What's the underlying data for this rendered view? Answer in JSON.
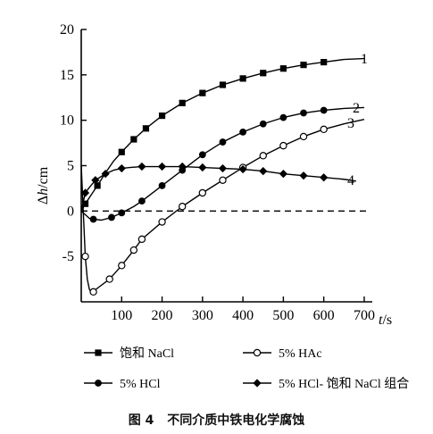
{
  "chart_data": {
    "type": "line",
    "title": "",
    "xlabel_var": "t",
    "xlabel_unit": "s",
    "ylabel_delta": "Δ",
    "ylabel_var": "h",
    "ylabel_unit": "cm",
    "xlim": [
      0,
      720
    ],
    "ylim": [
      -10,
      20
    ],
    "x_ticks": [
      100,
      200,
      300,
      400,
      500,
      600,
      700
    ],
    "y_ticks": [
      -5,
      0,
      5,
      10,
      15,
      20
    ],
    "grid": false,
    "zero_line": "dashed",
    "series": [
      {
        "name": "饱和 NaCl",
        "curve_label": "1",
        "marker": "square-filled",
        "x": [
          0,
          10,
          25,
          40,
          60,
          80,
          100,
          130,
          160,
          200,
          250,
          300,
          350,
          400,
          450,
          500,
          550,
          600,
          650,
          700
        ],
        "y": [
          0,
          0.8,
          1.8,
          2.8,
          4.2,
          5.5,
          6.5,
          7.9,
          9.1,
          10.5,
          11.9,
          13.0,
          13.9,
          14.6,
          15.2,
          15.7,
          16.1,
          16.4,
          16.7,
          16.8
        ],
        "marker_x": [
          10,
          40,
          100,
          130,
          160,
          200,
          250,
          300,
          350,
          400,
          450,
          500,
          550,
          600
        ]
      },
      {
        "name": "5% HCl",
        "curve_label": "2",
        "marker": "circle-filled",
        "x": [
          0,
          10,
          20,
          30,
          50,
          75,
          100,
          130,
          150,
          200,
          250,
          300,
          350,
          400,
          450,
          500,
          550,
          600,
          650,
          700
        ],
        "y": [
          0,
          -0.4,
          -0.8,
          -0.9,
          -1.0,
          -0.7,
          -0.2,
          0.5,
          1.1,
          2.8,
          4.5,
          6.2,
          7.6,
          8.7,
          9.6,
          10.3,
          10.8,
          11.1,
          11.3,
          11.4
        ],
        "marker_x": [
          30,
          75,
          100,
          150,
          200,
          250,
          300,
          350,
          400,
          450,
          500,
          550,
          600
        ]
      },
      {
        "name": "5% HAc",
        "curve_label": "3",
        "marker": "circle-open",
        "x": [
          0,
          5,
          10,
          15,
          20,
          25,
          30,
          40,
          70,
          100,
          130,
          150,
          200,
          250,
          300,
          350,
          400,
          450,
          500,
          550,
          600,
          650,
          700
        ],
        "y": [
          5,
          0,
          -5,
          -7.5,
          -8.6,
          -9.0,
          -8.9,
          -8.5,
          -7.5,
          -6.0,
          -4.3,
          -3.1,
          -1.2,
          0.5,
          2.0,
          3.4,
          4.8,
          6.1,
          7.2,
          8.2,
          9.0,
          9.6,
          10.1
        ],
        "marker_x": [
          10,
          30,
          70,
          100,
          130,
          150,
          200,
          250,
          300,
          350,
          400,
          450,
          500,
          550,
          600
        ]
      },
      {
        "name": "5% HCl- 饱和 NaCl 组合",
        "curve_label": "4",
        "marker": "diamond-filled",
        "x": [
          0,
          5,
          10,
          20,
          35,
          60,
          80,
          100,
          120,
          150,
          200,
          250,
          300,
          350,
          400,
          450,
          500,
          550,
          600,
          650,
          680
        ],
        "y": [
          0,
          1.0,
          2.0,
          2.6,
          3.4,
          4.1,
          4.5,
          4.7,
          4.8,
          4.9,
          4.9,
          4.9,
          4.8,
          4.7,
          4.6,
          4.4,
          4.1,
          3.9,
          3.7,
          3.5,
          3.3
        ],
        "marker_x": [
          10,
          35,
          60,
          100,
          150,
          200,
          250,
          300,
          350,
          400,
          450,
          500,
          550,
          600
        ]
      }
    ]
  },
  "caption": {
    "figure_no": "图 4",
    "text": "不同介质中铁电化学腐蚀"
  }
}
